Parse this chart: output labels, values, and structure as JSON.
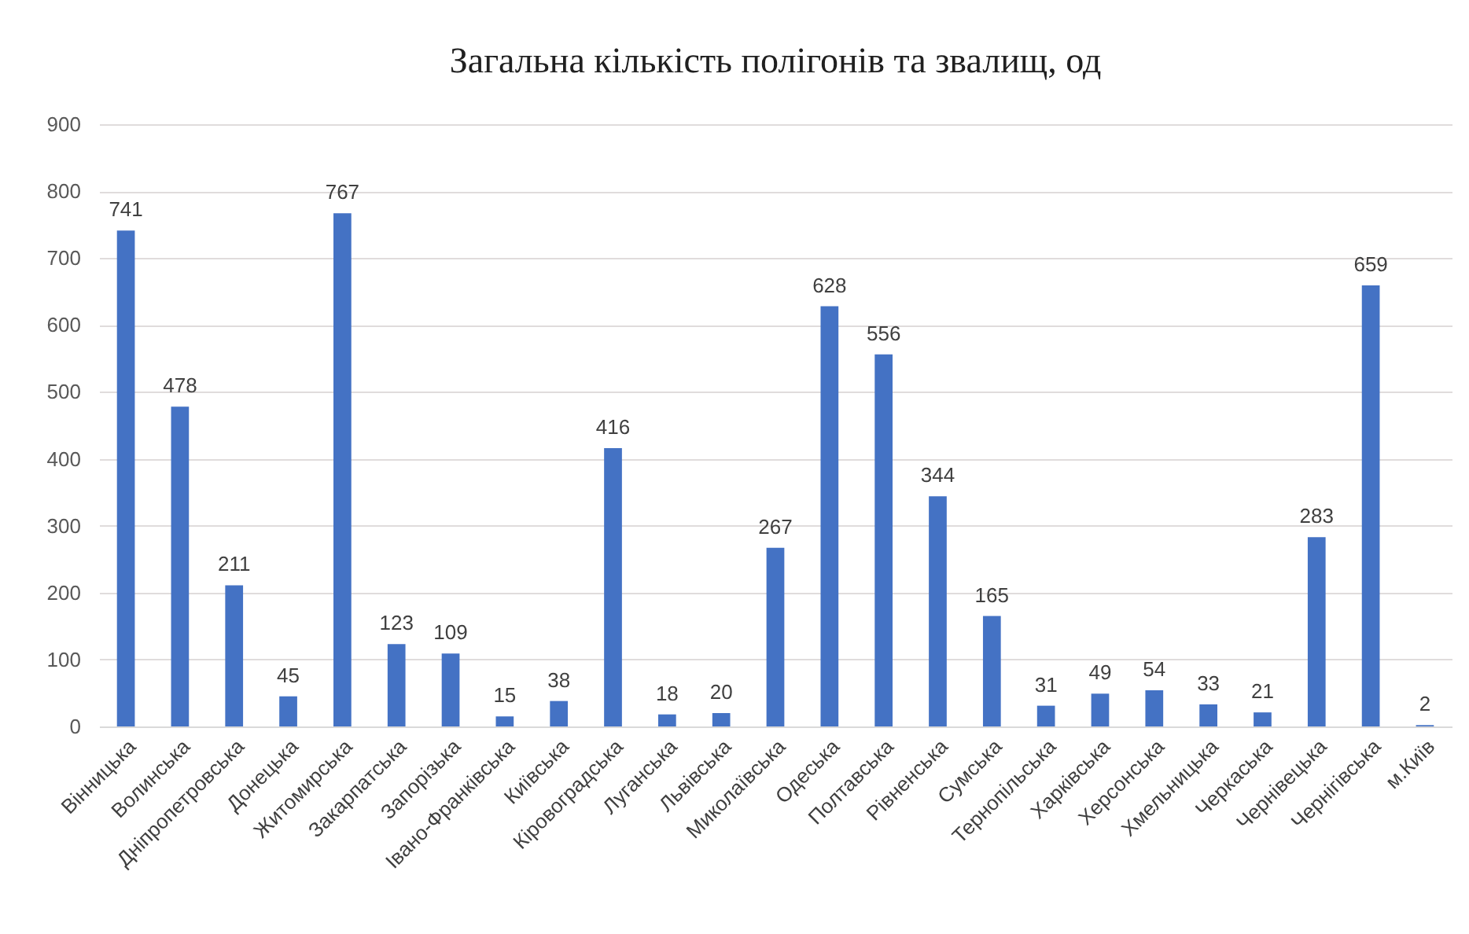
{
  "chart_data": {
    "type": "bar",
    "title": "Загальна кількість полігонів та звалищ, од",
    "categories": [
      "Вінницька",
      "Волинська",
      "Дніпропетровська",
      "Донецька",
      "Житомирська",
      "Закарпатська",
      "Запорізька",
      "Івано-Франківська",
      "Київська",
      "Кіровоградська",
      "Луганська",
      "Львівська",
      "Миколаївська",
      "Одеська",
      "Полтавська",
      "Рівненська",
      "Сумська",
      "Тернопільська",
      "Харківська",
      "Херсонська",
      "Хмельницька",
      "Черкаська",
      "Чернівецька",
      "Чернігівська",
      "м.Київ"
    ],
    "values": [
      741,
      478,
      211,
      45,
      767,
      123,
      109,
      15,
      38,
      416,
      18,
      20,
      267,
      628,
      556,
      344,
      165,
      31,
      49,
      54,
      33,
      21,
      283,
      659,
      2
    ],
    "color": "#4472c4",
    "ylim": [
      0,
      900
    ],
    "yticks": [
      0,
      100,
      200,
      300,
      400,
      500,
      600,
      700,
      800,
      900
    ],
    "grid": "y",
    "data_labels": true
  }
}
